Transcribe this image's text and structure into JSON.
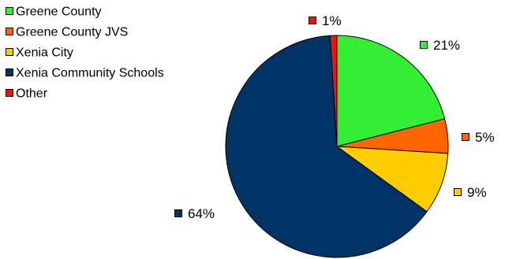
{
  "chart_data": {
    "type": "pie",
    "legend_placement": "top-left",
    "start_direction": "12 o'clock",
    "slice_order": "clockwise",
    "slices": [
      {
        "name": "Greene County",
        "value": 21,
        "label": "21%",
        "color": "#33ee33"
      },
      {
        "name": "Greene County JVS",
        "value": 5,
        "label": "5%",
        "color": "#ff6600"
      },
      {
        "name": "Xenia City",
        "value": 9,
        "label": "9%",
        "color": "#ffcc00"
      },
      {
        "name": "Xenia Community Schools",
        "value": 64,
        "label": "64%",
        "color": "#003366"
      },
      {
        "name": "Other",
        "value": 1,
        "label": "1%",
        "color": "#ee1111"
      }
    ]
  }
}
